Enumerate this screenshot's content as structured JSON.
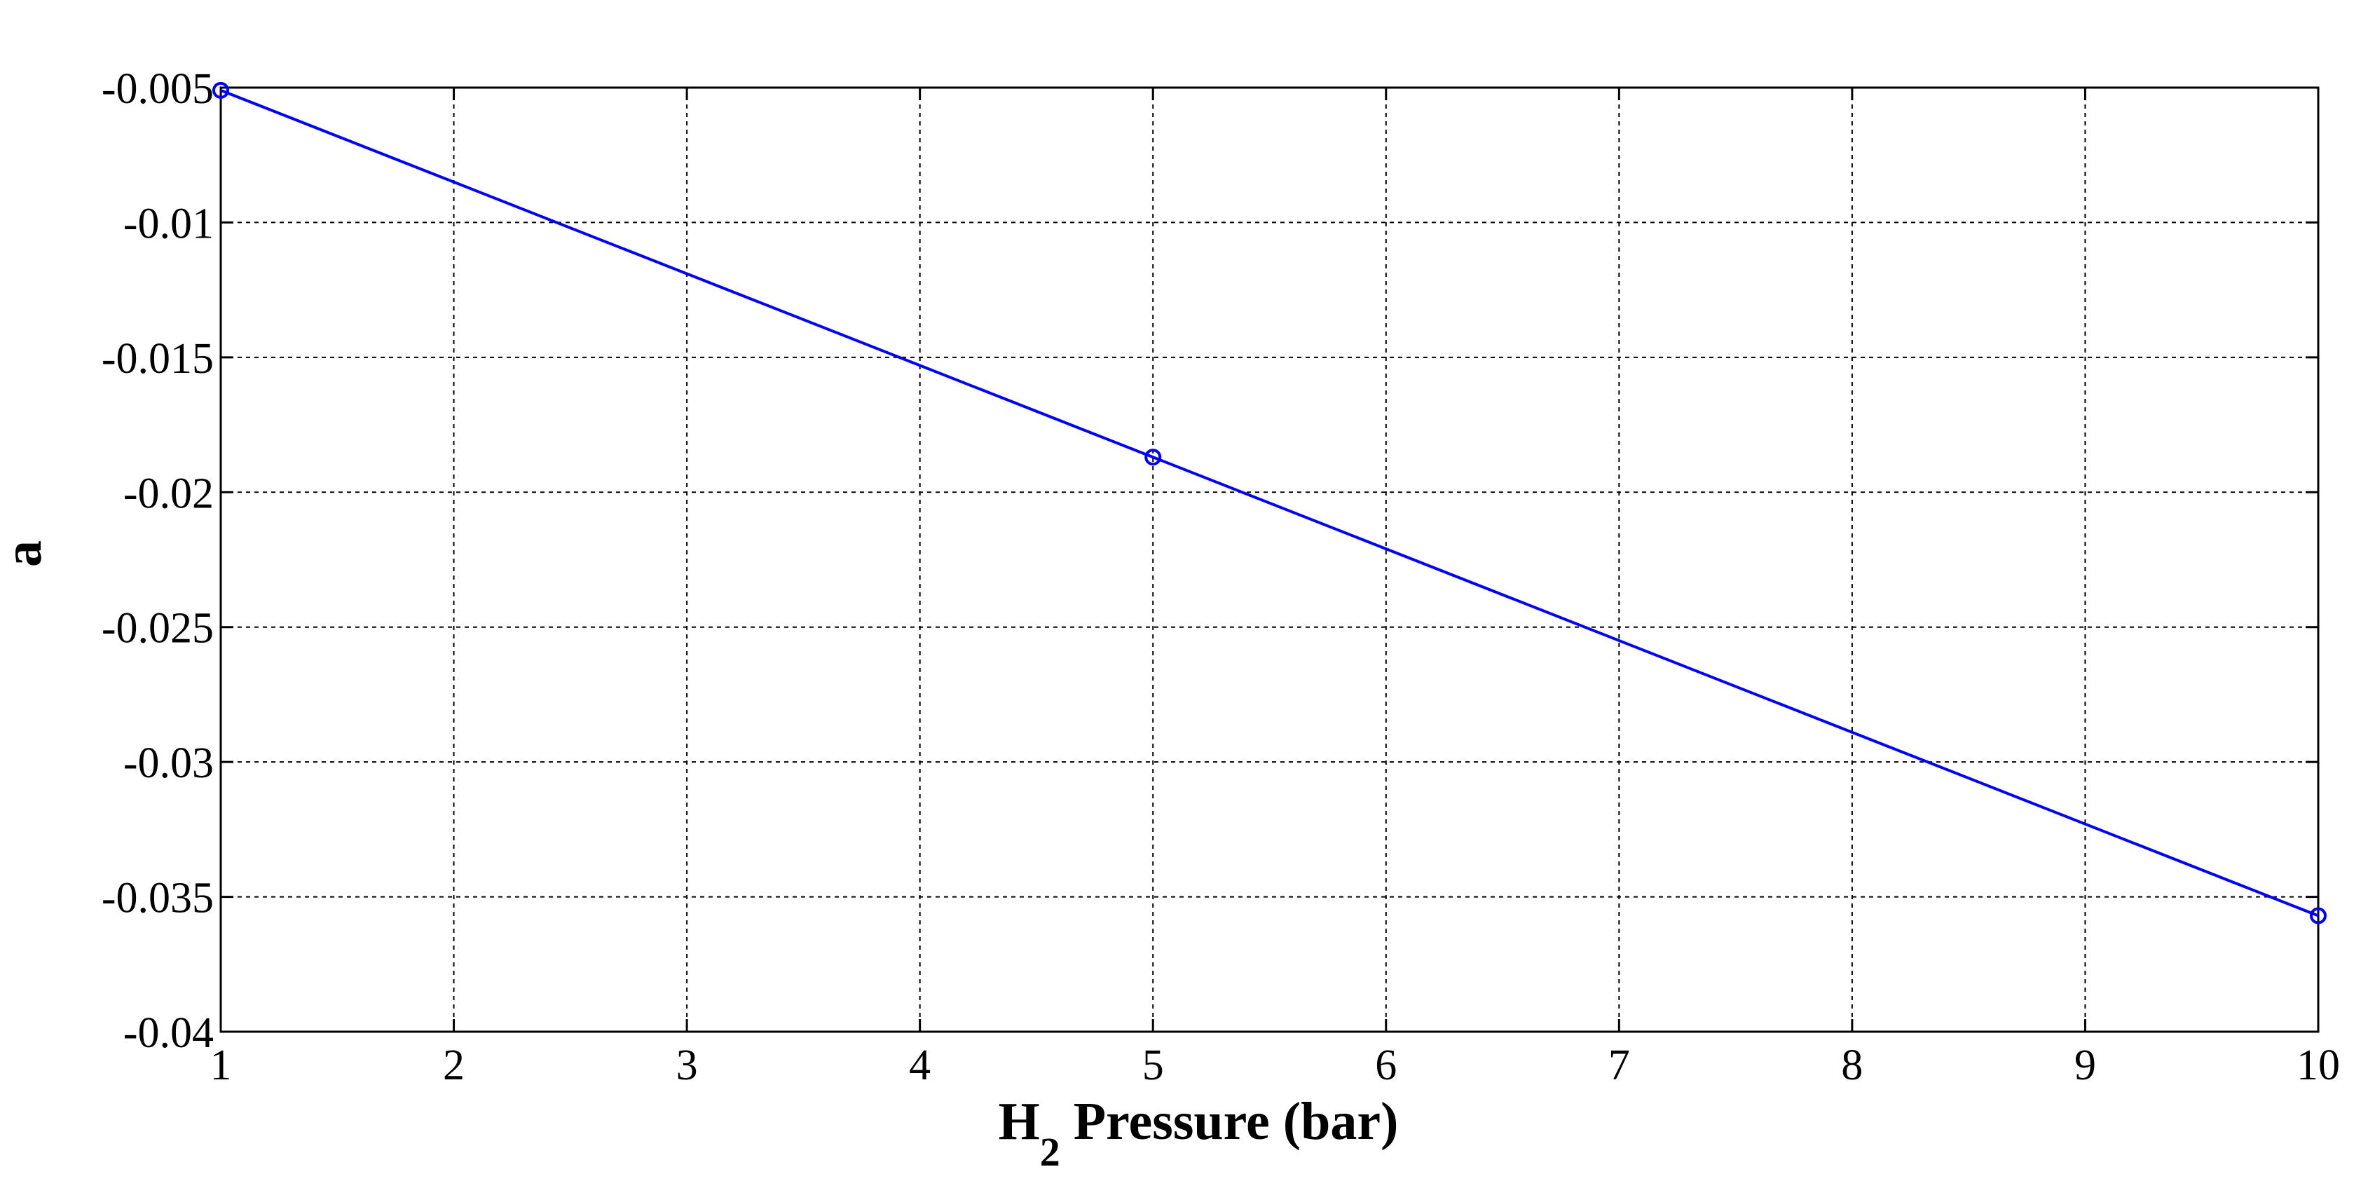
{
  "chart_data": {
    "type": "line",
    "title": "",
    "xlabel_main": "H",
    "xlabel_sub": "2",
    "xlabel_rest": " Pressure (bar)",
    "ylabel": "a",
    "xlim": [
      1,
      10
    ],
    "ylim": [
      -0.04,
      -0.005
    ],
    "x_ticks": [
      "1",
      "2",
      "3",
      "4",
      "5",
      "6",
      "7",
      "8",
      "9",
      "10"
    ],
    "y_ticks": [
      "-0.005",
      "-0.01",
      "-0.015",
      "-0.02",
      "-0.025",
      "-0.03",
      "-0.035",
      "-0.04"
    ],
    "grid": true,
    "series": [
      {
        "x": [
          1,
          5,
          10
        ],
        "y": [
          -0.0051,
          -0.0187,
          -0.0357
        ],
        "color": "#0000ff",
        "marker": "circle"
      }
    ]
  }
}
